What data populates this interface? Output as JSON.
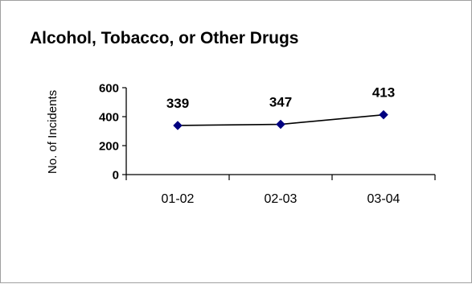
{
  "chart_data": {
    "type": "line",
    "title": "Alcohol, Tobacco, or Other Drugs",
    "xlabel": "",
    "ylabel": "No. of Incidents",
    "categories": [
      "01-02",
      "02-03",
      "03-04"
    ],
    "series": [
      {
        "values": [
          339,
          347,
          413
        ],
        "color": "#000080",
        "line_color": "#000000",
        "marker": "diamond"
      }
    ],
    "yticks": [
      0,
      200,
      400,
      600
    ],
    "ylim": [
      0,
      600
    ],
    "grid": false,
    "legend": "none",
    "data_labels": true
  }
}
